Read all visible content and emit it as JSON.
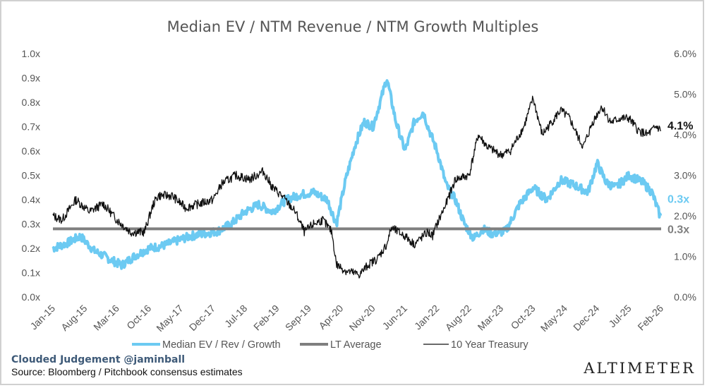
{
  "chart_data": {
    "type": "line",
    "title": "Median EV / NTM Revenue / NTM Growth Multiples",
    "x_tick_labels": [
      "Jan-15",
      "Aug-15",
      "Mar-16",
      "Oct-16",
      "May-17",
      "Dec-17",
      "Jul-18",
      "Feb-19",
      "Sep-19",
      "Apr-20",
      "Nov-20",
      "Jun-21",
      "Jan-22",
      "Aug-22",
      "Mar-23",
      "Oct-23",
      "May-24",
      "Dec-24",
      "Jul-25",
      "Feb-26"
    ],
    "x_range": [
      "2015-01",
      "2026-02"
    ],
    "y_left": {
      "ticks": [
        "0.0x",
        "0.1x",
        "0.2x",
        "0.3x",
        "0.4x",
        "0.5x",
        "0.6x",
        "0.7x",
        "0.8x",
        "0.9x",
        "1.0x"
      ],
      "min": 0,
      "max": 1.0
    },
    "y_right": {
      "ticks": [
        "0.0%",
        "1.0%",
        "2.0%",
        "3.0%",
        "4.0%",
        "5.0%",
        "6.0%"
      ],
      "min": 0,
      "max": 6.0
    },
    "grid": false,
    "legend_position": "bottom",
    "series": [
      {
        "name": "Median EV / Rev / Growth",
        "axis": "left",
        "color": "#6ccaf2",
        "style": "thick",
        "x": [
          "2015-01",
          "2015-04",
          "2015-07",
          "2015-10",
          "2016-01",
          "2016-04",
          "2016-07",
          "2016-10",
          "2017-01",
          "2017-04",
          "2017-07",
          "2017-10",
          "2018-01",
          "2018-04",
          "2018-07",
          "2018-10",
          "2019-01",
          "2019-04",
          "2019-07",
          "2019-10",
          "2020-01",
          "2020-03",
          "2020-05",
          "2020-07",
          "2020-09",
          "2020-11",
          "2021-01",
          "2021-02",
          "2021-04",
          "2021-06",
          "2021-08",
          "2021-10",
          "2021-11",
          "2022-01",
          "2022-03",
          "2022-05",
          "2022-07",
          "2022-09",
          "2022-11",
          "2023-01",
          "2023-04",
          "2023-07",
          "2023-10",
          "2024-01",
          "2024-04",
          "2024-07",
          "2024-10",
          "2024-12",
          "2025-02",
          "2025-04",
          "2025-07",
          "2025-10",
          "2025-12",
          "2026-02"
        ],
        "values": [
          0.2,
          0.22,
          0.25,
          0.19,
          0.16,
          0.13,
          0.17,
          0.2,
          0.21,
          0.23,
          0.25,
          0.26,
          0.27,
          0.3,
          0.35,
          0.38,
          0.35,
          0.4,
          0.42,
          0.43,
          0.4,
          0.3,
          0.48,
          0.62,
          0.72,
          0.7,
          0.83,
          0.9,
          0.72,
          0.6,
          0.72,
          0.76,
          0.7,
          0.6,
          0.46,
          0.4,
          0.3,
          0.24,
          0.28,
          0.26,
          0.27,
          0.38,
          0.45,
          0.4,
          0.48,
          0.46,
          0.43,
          0.55,
          0.47,
          0.45,
          0.5,
          0.47,
          0.43,
          0.32
        ]
      },
      {
        "name": "LT Average",
        "axis": "left",
        "color": "#7f7f7f",
        "style": "flat",
        "value": 0.28
      },
      {
        "name": "10 Year Treasury",
        "axis": "right",
        "color": "#111111",
        "style": "thin",
        "x": [
          "2015-01",
          "2015-03",
          "2015-06",
          "2015-09",
          "2015-12",
          "2016-03",
          "2016-06",
          "2016-09",
          "2016-11",
          "2016-12",
          "2017-03",
          "2017-06",
          "2017-09",
          "2017-12",
          "2018-02",
          "2018-05",
          "2018-08",
          "2018-11",
          "2019-01",
          "2019-03",
          "2019-06",
          "2019-08",
          "2019-10",
          "2019-12",
          "2020-02",
          "2020-03",
          "2020-05",
          "2020-08",
          "2020-10",
          "2020-12",
          "2021-02",
          "2021-03",
          "2021-06",
          "2021-08",
          "2021-11",
          "2021-12",
          "2022-01",
          "2022-03",
          "2022-05",
          "2022-08",
          "2022-10",
          "2022-12",
          "2023-03",
          "2023-05",
          "2023-08",
          "2023-10",
          "2023-12",
          "2024-02",
          "2024-04",
          "2024-06",
          "2024-08",
          "2024-09",
          "2024-11",
          "2025-01",
          "2025-03",
          "2025-05",
          "2025-07",
          "2025-09",
          "2025-11",
          "2026-01",
          "2026-02"
        ],
        "values": [
          2.0,
          1.9,
          2.4,
          2.1,
          2.3,
          1.9,
          1.6,
          1.6,
          2.3,
          2.5,
          2.5,
          2.2,
          2.3,
          2.4,
          2.8,
          3.0,
          2.9,
          3.1,
          2.7,
          2.5,
          2.1,
          1.6,
          1.8,
          1.9,
          1.6,
          0.8,
          0.65,
          0.55,
          0.8,
          0.95,
          1.3,
          1.7,
          1.5,
          1.3,
          1.6,
          1.5,
          1.8,
          2.3,
          2.9,
          3.0,
          4.0,
          3.7,
          3.5,
          3.6,
          4.2,
          4.9,
          4.0,
          4.3,
          4.6,
          4.4,
          3.9,
          3.7,
          4.3,
          4.7,
          4.3,
          4.4,
          4.4,
          4.1,
          4.0,
          4.2,
          4.1
        ]
      }
    ],
    "end_labels": [
      {
        "text": "4.1%",
        "color": "#111111",
        "series": "10 Year Treasury"
      },
      {
        "text": "0.3x",
        "color": "#6ccaf2",
        "series": "Median EV / Rev / Growth"
      },
      {
        "text": "0.3x",
        "color": "#7f7f7f",
        "series": "LT Average"
      }
    ]
  },
  "footer": {
    "credit": "Clouded Judgement @jaminball",
    "source": "Source: Bloomberg / Pitchbook consensus estimates",
    "brand": "ALTIMETER"
  }
}
